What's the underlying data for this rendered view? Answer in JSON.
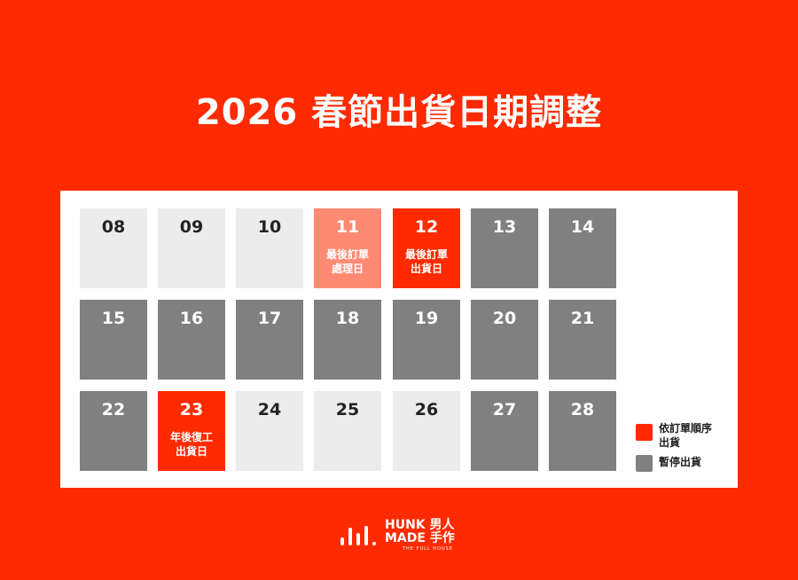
{
  "title": "2026 春節出貨日期調整",
  "colors": {
    "background": "#ff2a00",
    "normal": "#ececec",
    "paused": "#808080",
    "ship": "#ff2a00",
    "last_order": "#ff8a73"
  },
  "weeks": [
    [
      {
        "day": "08",
        "type": "light"
      },
      {
        "day": "09",
        "type": "light"
      },
      {
        "day": "10",
        "type": "light"
      },
      {
        "day": "11",
        "type": "pink",
        "note": "最後訂單\n處理日"
      },
      {
        "day": "12",
        "type": "red",
        "note": "最後訂單\n出貨日"
      },
      {
        "day": "13",
        "type": "gray"
      },
      {
        "day": "14",
        "type": "gray"
      }
    ],
    [
      {
        "day": "15",
        "type": "gray"
      },
      {
        "day": "16",
        "type": "gray"
      },
      {
        "day": "17",
        "type": "gray"
      },
      {
        "day": "18",
        "type": "gray"
      },
      {
        "day": "19",
        "type": "gray"
      },
      {
        "day": "20",
        "type": "gray"
      },
      {
        "day": "21",
        "type": "gray"
      }
    ],
    [
      {
        "day": "22",
        "type": "gray"
      },
      {
        "day": "23",
        "type": "red",
        "note": "年後復工\n出貨日"
      },
      {
        "day": "24",
        "type": "light"
      },
      {
        "day": "25",
        "type": "light"
      },
      {
        "day": "26",
        "type": "light"
      },
      {
        "day": "27",
        "type": "gray"
      },
      {
        "day": "28",
        "type": "gray"
      }
    ]
  ],
  "legend": [
    {
      "label": "依訂單順序\n出貨",
      "color": "#ff2a00"
    },
    {
      "label": "暫停出貨",
      "color": "#808080"
    }
  ],
  "logo": {
    "line1": "HUNK 男人",
    "line2": "MADE 手作",
    "tagline": "THE FULL HOUSE"
  }
}
